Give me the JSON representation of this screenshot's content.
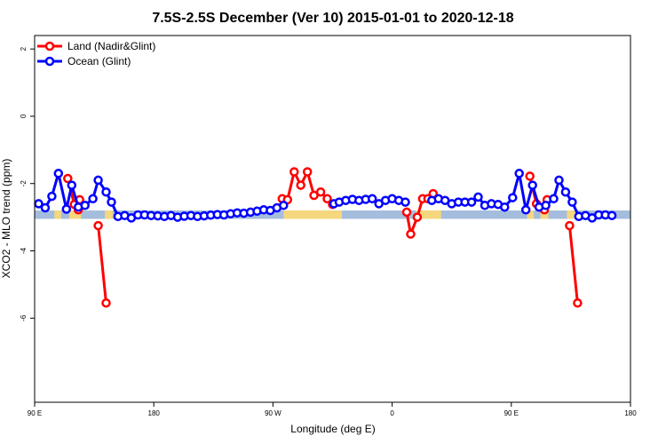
{
  "chart_data": {
    "type": "line",
    "title": "7.5S-2.5S December (Ver 10)   2015-01-01 to 2020-12-18",
    "xlabel": "Longitude (deg E)",
    "ylabel": "XCO2 - MLO trend (ppm)",
    "xlim": [
      90,
      540
    ],
    "ylim": [
      -8.5,
      2.4
    ],
    "x_ticks": [
      {
        "value": 90,
        "label": "90 E"
      },
      {
        "value": 180,
        "label": "180"
      },
      {
        "value": 270,
        "label": "90 W"
      },
      {
        "value": 360,
        "label": "0"
      },
      {
        "value": 450,
        "label": "90 E"
      },
      {
        "value": 540,
        "label": "180"
      }
    ],
    "y_ticks": [
      {
        "value": 2,
        "label": "2"
      },
      {
        "value": 0,
        "label": "0"
      },
      {
        "value": -2,
        "label": "-2"
      },
      {
        "value": -4,
        "label": "-4"
      },
      {
        "value": -6,
        "label": "-6"
      }
    ],
    "land_mask": {
      "y_range": [
        -3.05,
        -2.8
      ],
      "ocean_color": "#a5bddd",
      "land_color": "#f5d77e",
      "land_segments": [
        [
          105,
          110
        ],
        [
          116,
          125
        ],
        [
          143,
          149
        ],
        [
          278,
          322
        ],
        [
          378,
          397
        ],
        [
          462,
          467
        ],
        [
          472,
          478
        ],
        [
          492,
          499
        ]
      ]
    },
    "legend": {
      "position": "top-left",
      "entries": [
        {
          "label": "Land (Nadir&Glint)",
          "color": "#ff0000"
        },
        {
          "label": "Ocean (Glint)",
          "color": "#0000ff"
        }
      ]
    },
    "series": [
      {
        "name": "Land (Nadir&Glint)",
        "color": "#ff0000",
        "segments": [
          [
            [
              115,
              -1.85
            ],
            [
              120,
              -2.62
            ],
            [
              123,
              -2.78
            ],
            [
              124,
              -2.48
            ]
          ],
          [
            [
              138,
              -3.25
            ],
            [
              144,
              -5.55
            ]
          ],
          [
            [
              277,
              -2.45
            ],
            [
              281,
              -2.48
            ],
            [
              286,
              -1.65
            ],
            [
              291,
              -2.05
            ],
            [
              296,
              -1.65
            ],
            [
              301,
              -2.35
            ],
            [
              306,
              -2.25
            ],
            [
              311,
              -2.45
            ],
            [
              315,
              -2.62
            ]
          ],
          [
            [
              371,
              -2.85
            ],
            [
              374,
              -3.5
            ],
            [
              379,
              -3.0
            ],
            [
              383,
              -2.45
            ],
            [
              387,
              -2.45
            ],
            [
              391,
              -2.3
            ]
          ],
          [
            [
              464,
              -1.78
            ],
            [
              469,
              -2.6
            ],
            [
              475,
              -2.78
            ],
            [
              477,
              -2.48
            ]
          ],
          [
            [
              494,
              -3.25
            ],
            [
              500,
              -5.55
            ]
          ]
        ]
      },
      {
        "name": "Ocean (Glint)",
        "color": "#0000ff",
        "segments": [
          [
            [
              93,
              -2.6
            ],
            [
              98,
              -2.72
            ],
            [
              103,
              -2.38
            ],
            [
              108,
              -1.7
            ],
            [
              114,
              -2.76
            ],
            [
              118,
              -2.05
            ],
            [
              123,
              -2.7
            ],
            [
              128,
              -2.65
            ],
            [
              134,
              -2.45
            ],
            [
              138,
              -1.9
            ],
            [
              144,
              -2.25
            ],
            [
              148,
              -2.55
            ],
            [
              153,
              -2.98
            ],
            [
              158,
              -2.95
            ],
            [
              163,
              -3.02
            ],
            [
              168,
              -2.93
            ],
            [
              173,
              -2.93
            ],
            [
              178,
              -2.95
            ],
            [
              183,
              -2.96
            ],
            [
              188,
              -2.98
            ],
            [
              193,
              -2.95
            ],
            [
              198,
              -3.0
            ],
            [
              203,
              -2.97
            ],
            [
              208,
              -2.95
            ],
            [
              213,
              -2.98
            ],
            [
              218,
              -2.96
            ],
            [
              223,
              -2.94
            ],
            [
              228,
              -2.92
            ],
            [
              233,
              -2.93
            ],
            [
              238,
              -2.9
            ],
            [
              243,
              -2.87
            ],
            [
              248,
              -2.88
            ],
            [
              253,
              -2.85
            ],
            [
              258,
              -2.82
            ],
            [
              263,
              -2.78
            ],
            [
              268,
              -2.8
            ],
            [
              273,
              -2.72
            ],
            [
              278,
              -2.65
            ]
          ],
          [
            [
              316,
              -2.6
            ],
            [
              320,
              -2.55
            ],
            [
              325,
              -2.5
            ],
            [
              330,
              -2.47
            ],
            [
              335,
              -2.5
            ],
            [
              340,
              -2.47
            ],
            [
              345,
              -2.45
            ],
            [
              350,
              -2.6
            ],
            [
              355,
              -2.5
            ],
            [
              360,
              -2.45
            ],
            [
              365,
              -2.5
            ],
            [
              370,
              -2.55
            ]
          ],
          [
            [
              390,
              -2.5
            ],
            [
              395,
              -2.45
            ],
            [
              400,
              -2.5
            ],
            [
              405,
              -2.6
            ],
            [
              410,
              -2.55
            ],
            [
              415,
              -2.55
            ],
            [
              420,
              -2.55
            ],
            [
              425,
              -2.4
            ],
            [
              430,
              -2.65
            ],
            [
              435,
              -2.6
            ],
            [
              440,
              -2.62
            ],
            [
              445,
              -2.7
            ],
            [
              451,
              -2.42
            ],
            [
              456,
              -1.7
            ],
            [
              461,
              -2.78
            ],
            [
              466,
              -2.05
            ],
            [
              471,
              -2.7
            ],
            [
              476,
              -2.65
            ],
            [
              482,
              -2.45
            ],
            [
              486,
              -1.9
            ],
            [
              491,
              -2.25
            ],
            [
              496,
              -2.55
            ],
            [
              501,
              -2.98
            ],
            [
              506,
              -2.95
            ],
            [
              511,
              -3.02
            ],
            [
              516,
              -2.93
            ],
            [
              521,
              -2.93
            ],
            [
              526,
              -2.95
            ]
          ]
        ]
      }
    ]
  }
}
